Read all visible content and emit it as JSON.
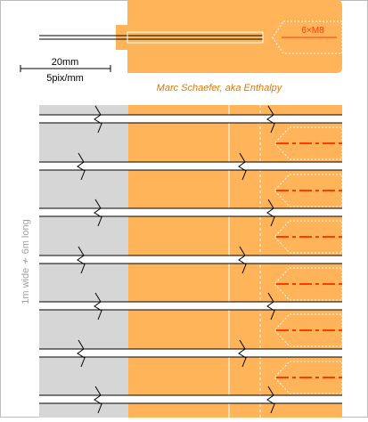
{
  "header": {
    "bolt_label": "6×M8",
    "scale_length": "20mm",
    "scale_ratio": "5pix/mm",
    "author": "Marc Schaefer, aka Enthalpy"
  },
  "side_label": "1m wide ≁ 6m long",
  "colors": {
    "metal": "#ffb45a",
    "grey_zone": "#d6d6d6",
    "accent_red": "#ff3c00",
    "frame": "#bcbcbc",
    "line": "#000000"
  },
  "joints": {
    "count": 7,
    "break_pattern": [
      "near",
      "far",
      "near",
      "far",
      "near",
      "far",
      "near"
    ],
    "bolt_symbols": 6
  }
}
